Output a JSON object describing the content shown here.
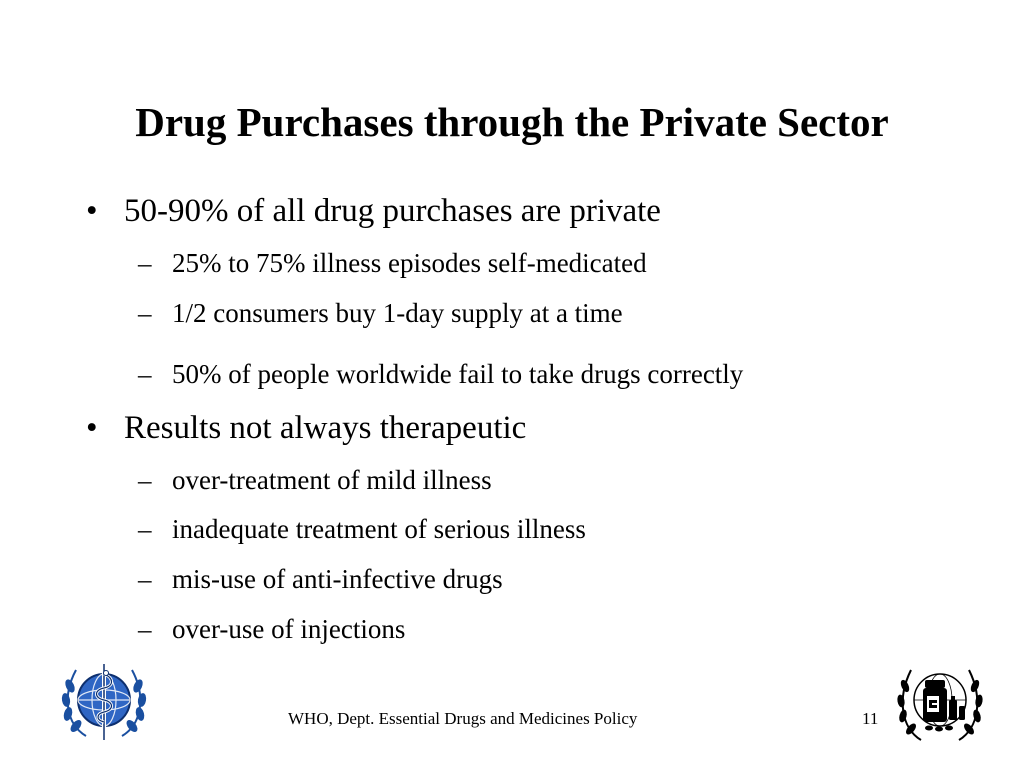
{
  "slide": {
    "title": "Drug Purchases through the Private Sector",
    "bullets": [
      {
        "text": "50-90% of all drug purchases are private",
        "subs": [
          "25% to 75% illness episodes self-medicated",
          "1/2 consumers buy 1-day supply at a time",
          "50% of people worldwide fail to take drugs correctly"
        ]
      },
      {
        "text": "Results not always therapeutic",
        "subs": [
          "over-treatment of mild illness",
          "inadequate treatment of serious illness",
          "mis-use of anti-infective drugs",
          "over-use of injections"
        ]
      }
    ],
    "bullet_mark": "•",
    "sub_mark": "–"
  },
  "footer": {
    "text": "WHO, Dept. Essential Drugs and Medicines Policy",
    "page_number": "11"
  },
  "logos": {
    "left": "who-emblem-icon",
    "right": "essential-drugs-emblem-icon"
  },
  "colors": {
    "background": "#ffffff",
    "text": "#000000",
    "emblem_blue": "#1a4fa0"
  }
}
